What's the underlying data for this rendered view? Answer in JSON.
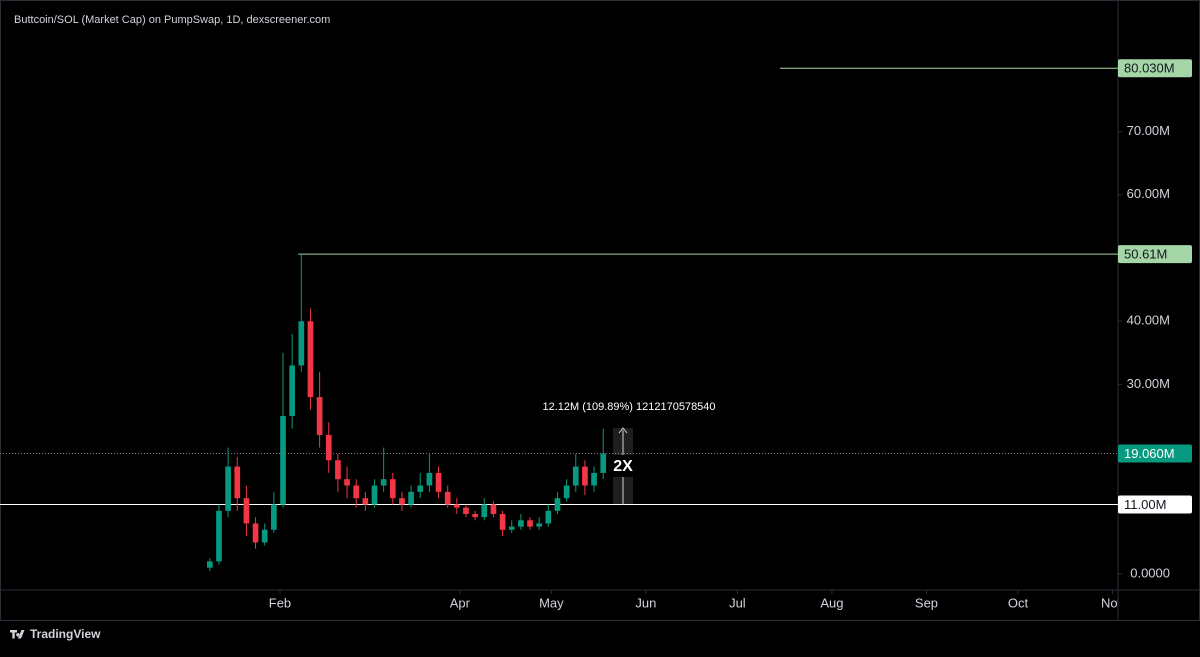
{
  "chart_data": {
    "type": "candlestick",
    "title": "Buttcoin/SOL (Market Cap) on PumpSwap, 1D, dexscreener.com",
    "footer": "TradingView",
    "up_color": "#089981",
    "down_color": "#f23645",
    "x": [
      9,
      12,
      15,
      18,
      21,
      24,
      27,
      30,
      33,
      36,
      39,
      42,
      45,
      48,
      51,
      54,
      57,
      60,
      63,
      66,
      69,
      72,
      75,
      78,
      81,
      84,
      87,
      90,
      93,
      96,
      99,
      102,
      105,
      108,
      111,
      114,
      117,
      120,
      123,
      126,
      129,
      132,
      135,
      138
    ],
    "open": [
      1000000,
      2000000,
      10000000,
      17000000,
      12000000,
      8000000,
      5000000,
      7000000,
      11000000,
      25000000,
      33000000,
      40000000,
      28000000,
      22000000,
      18000000,
      15000000,
      14000000,
      12000000,
      11000000,
      14000000,
      15000000,
      12000000,
      11000000,
      13000000,
      14000000,
      16000000,
      13000000,
      11000000,
      10500000,
      9500000,
      9000000,
      11000000,
      9500000,
      7000000,
      7500000,
      8500000,
      7500000,
      8000000,
      10000000,
      12000000,
      14000000,
      17000000,
      14000000,
      16000000
    ],
    "high": [
      2500000,
      11000000,
      20000000,
      18500000,
      14000000,
      9000000,
      8000000,
      13000000,
      35000000,
      38000000,
      50610000,
      42000000,
      32000000,
      24000000,
      19000000,
      17000000,
      15000000,
      13000000,
      15000000,
      20000000,
      16000000,
      13000000,
      14000000,
      16000000,
      19000000,
      17000000,
      14000000,
      12000000,
      11000000,
      10000000,
      12000000,
      11500000,
      10000000,
      8500000,
      9500000,
      9000000,
      9000000,
      11000000,
      13000000,
      15000000,
      19000000,
      18000000,
      17000000,
      23000000
    ],
    "low": [
      500000,
      1500000,
      9000000,
      10000000,
      6000000,
      4000000,
      4500000,
      6500000,
      10500000,
      23000000,
      32000000,
      26000000,
      20000000,
      16000000,
      13000000,
      12000000,
      10500000,
      10000000,
      10500000,
      13000000,
      11000000,
      10000000,
      10500000,
      12000000,
      13000000,
      12000000,
      10500000,
      9500000,
      9000000,
      8500000,
      8500000,
      9000000,
      6000000,
      6500000,
      7000000,
      7000000,
      7000000,
      7500000,
      9500000,
      11500000,
      13000000,
      12500000,
      13000000,
      15000000
    ],
    "close": [
      2000000,
      10000000,
      17000000,
      12000000,
      8000000,
      5000000,
      7000000,
      11000000,
      25000000,
      33000000,
      40000000,
      28000000,
      22000000,
      18000000,
      15000000,
      14000000,
      12000000,
      11000000,
      14000000,
      15000000,
      12000000,
      11000000,
      13000000,
      14000000,
      16000000,
      13000000,
      11000000,
      10500000,
      9500000,
      9000000,
      11000000,
      9500000,
      7000000,
      7500000,
      8500000,
      7500000,
      8000000,
      10000000,
      12000000,
      14000000,
      17000000,
      14000000,
      16000000,
      19060000
    ],
    "xlim": [
      -59.8,
      306.8
    ],
    "xticks": [
      {
        "value": 32,
        "label": "Feb"
      },
      {
        "value": 91,
        "label": "Apr"
      },
      {
        "value": 121,
        "label": "May"
      },
      {
        "value": 152,
        "label": "Jun"
      },
      {
        "value": 182,
        "label": "Jul"
      },
      {
        "value": 213,
        "label": "Aug"
      },
      {
        "value": 244,
        "label": "Sep"
      },
      {
        "value": 274,
        "label": "Oct"
      },
      {
        "value": 305,
        "label": "Nov"
      }
    ],
    "ylim": [
      -2530000,
      89240000
    ],
    "yticks": [
      {
        "value": 0,
        "label": "0.0000"
      },
      {
        "value": 30000000,
        "label": "30.00M"
      },
      {
        "value": 40000000,
        "label": "40.00M"
      },
      {
        "value": 60000000,
        "label": "60.00M"
      },
      {
        "value": 70000000,
        "label": "70.00M"
      }
    ],
    "levels": [
      {
        "value": 80030000,
        "label": "80.030M",
        "x": 196,
        "color": "#a5d6a7"
      },
      {
        "value": 50610000,
        "label": "50.61M",
        "x": 38,
        "color": "#a5d6a7"
      },
      {
        "value": 11000000,
        "label": "11.00M",
        "x": -59.8,
        "color": "#ffffff"
      }
    ],
    "last_price": {
      "value": 19060000,
      "label": "19.060M",
      "color": "#089981"
    },
    "measure": {
      "text": "12.12M (109.89%) 1212170578540",
      "tag": "2X"
    }
  }
}
